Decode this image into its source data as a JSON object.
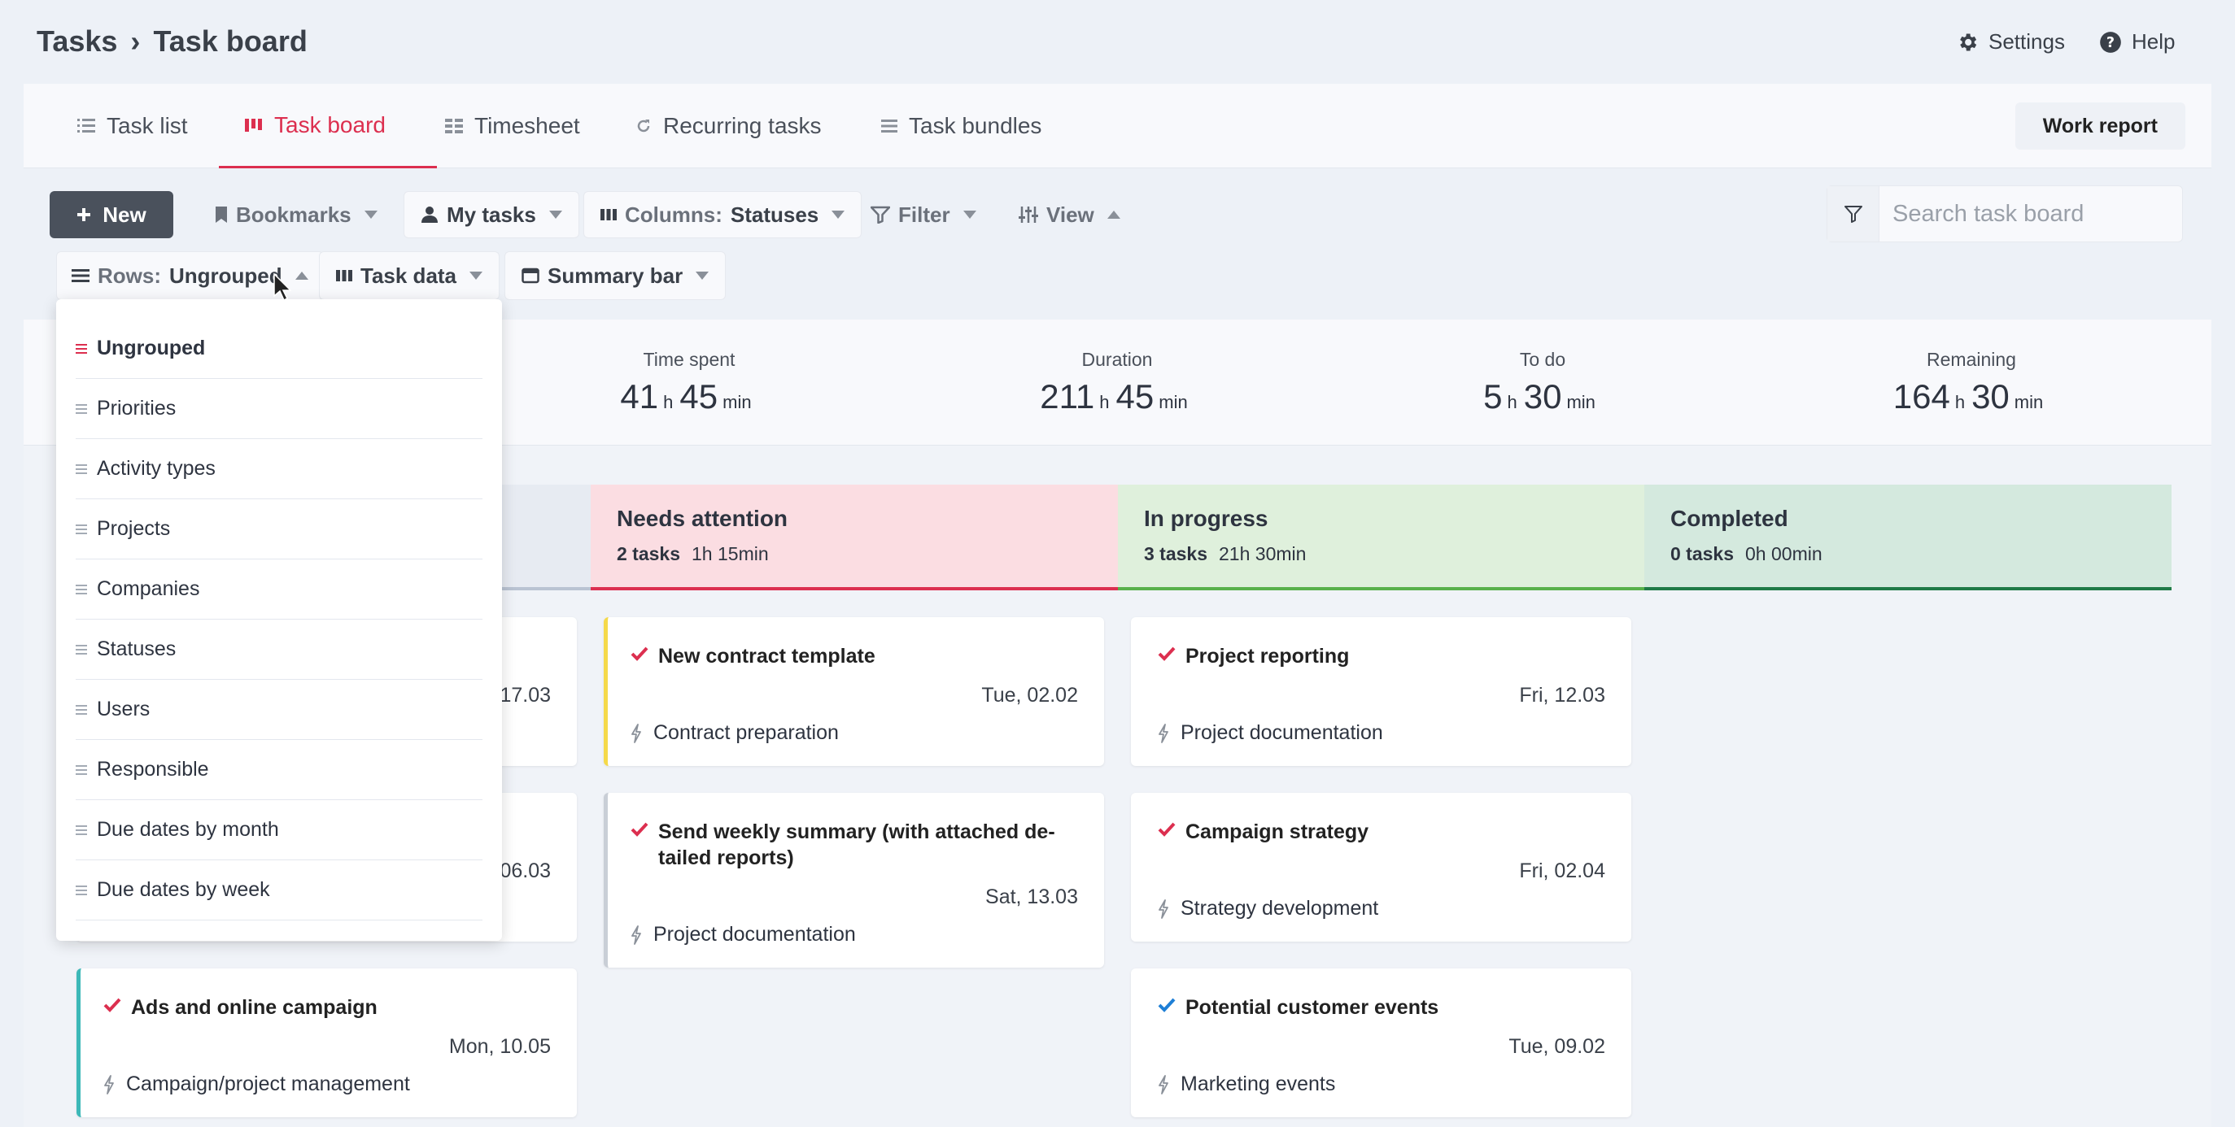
{
  "header": {
    "breadcrumb_root": "Tasks",
    "breadcrumb_sep": "›",
    "breadcrumb_current": "Task board",
    "settings_label": "Settings",
    "help_label": "Help"
  },
  "tabs": {
    "task_list": "Task list",
    "task_board": "Task board",
    "timesheet": "Timesheet",
    "recurring": "Recurring tasks",
    "bundles": "Task bundles",
    "active": "task_board",
    "work_report": "Work report"
  },
  "toolbar": {
    "new_label": "New",
    "bookmarks_label": "Bookmarks",
    "my_tasks_label": "My tasks",
    "columns_prefix": "Columns:",
    "columns_value": "Statuses",
    "filter_label": "Filter",
    "view_label": "View",
    "rows_prefix": "Rows:",
    "rows_value": "Ungrouped",
    "task_data_label": "Task data",
    "summary_bar_label": "Summary bar",
    "search_placeholder": "Search task board"
  },
  "summary": {
    "time_spent": {
      "label": "Time spent",
      "h": "41",
      "m": "45"
    },
    "duration": {
      "label": "Duration",
      "h": "211",
      "m": "45"
    },
    "to_do": {
      "label": "To do",
      "h": "5",
      "m": "30"
    },
    "remaining": {
      "label": "Remaining",
      "h": "164",
      "m": "30"
    },
    "unit_h": "h",
    "unit_min": "min"
  },
  "columns": [
    {
      "name": "Needs attention",
      "count": "2 tasks",
      "time": "1h 15min",
      "bg": "#fbdde2",
      "border": "#dc2f4f"
    },
    {
      "name": "In progress",
      "count": "3 tasks",
      "time": "21h 30min",
      "bg": "#dff0dc",
      "border": "#58b14b"
    },
    {
      "name": "Completed",
      "count": "0 tasks",
      "time": "0h 00min",
      "bg": "#d4e9de",
      "border": "#1f7a47"
    }
  ],
  "cards": {
    "left1_date": "17.03",
    "left2_date": "06.03",
    "ads": {
      "title": "Ads and online campaign",
      "date": "Mon, 10.05",
      "activity": "Campaign/project management",
      "accent": "#3db8b8"
    },
    "contract": {
      "title": "New contract template",
      "date": "Tue, 02.02",
      "activity": "Contract preparation",
      "accent": "#f5d94a"
    },
    "weekly": {
      "title": "Send weekly summary (with attached de-tailed reports)",
      "date": "Sat, 13.03",
      "activity": "Project documentation",
      "accent": "#c9ced6"
    },
    "reporting": {
      "title": "Project reporting",
      "date": "Fri, 12.03",
      "activity": "Project documentation"
    },
    "campaign": {
      "title": "Campaign strategy",
      "date": "Fri, 02.04",
      "activity": "Strategy development"
    },
    "events": {
      "title": "Potential customer events",
      "date": "Tue, 09.02",
      "activity": "Marketing events"
    }
  },
  "rows_menu": {
    "items": [
      "Ungrouped",
      "Priorities",
      "Activity types",
      "Projects",
      "Companies",
      "Statuses",
      "Users",
      "Responsible",
      "Due dates by month",
      "Due dates by week"
    ],
    "selected": "Ungrouped"
  },
  "colors": {
    "accent": "#dc2f4f",
    "check_red": "#dc2f4f",
    "check_blue": "#1e7fd6",
    "dark_button": "#4a515c"
  }
}
